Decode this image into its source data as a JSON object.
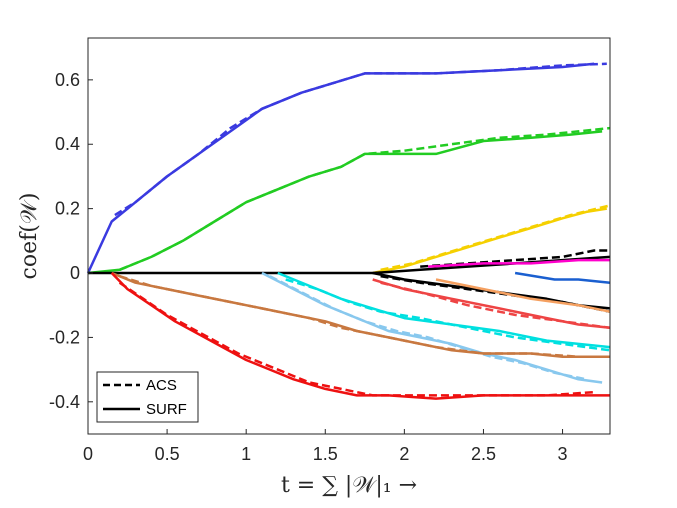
{
  "chart_data": {
    "type": "line",
    "xlabel": "t = ∑ |𝒲|₁ →",
    "ylabel": "coef(𝒲)",
    "xlim": [
      0,
      3.3
    ],
    "ylim": [
      -0.5,
      0.73
    ],
    "xticks": [
      0,
      0.5,
      1,
      1.5,
      2,
      2.5,
      3
    ],
    "xtick_labels": [
      "0",
      "0.5",
      "1",
      "1.5",
      "2",
      "2.5",
      "3"
    ],
    "yticks": [
      -0.4,
      -0.2,
      0,
      0.2,
      0.4,
      0.6
    ],
    "ytick_labels": [
      "-0.4",
      "-0.2",
      "0",
      "0.2",
      "0.4",
      "0.6"
    ],
    "grid": false,
    "legend": {
      "placement": "bottom-left",
      "entries": [
        {
          "label": "ACS",
          "style": "dashed"
        },
        {
          "label": "SURF",
          "style": "solid"
        }
      ]
    },
    "series": [
      {
        "color": "#3a3ae0",
        "style": "solid",
        "x": [
          0,
          0.15,
          0.3,
          0.5,
          0.7,
          0.9,
          1.1,
          1.35,
          1.55,
          1.75,
          1.85,
          2.2,
          2.6,
          3.0,
          3.2
        ],
        "y": [
          0,
          0.16,
          0.22,
          0.3,
          0.37,
          0.44,
          0.51,
          0.56,
          0.59,
          0.62,
          0.62,
          0.62,
          0.63,
          0.64,
          0.65
        ]
      },
      {
        "color": "#3a3ae0",
        "style": "dashed",
        "x": [
          0.17,
          0.3,
          0.5,
          0.7,
          0.9,
          1.1,
          1.35,
          1.55,
          1.75,
          1.85,
          2.2,
          2.6,
          3.0,
          3.28
        ],
        "y": [
          0.18,
          0.22,
          0.3,
          0.37,
          0.45,
          0.51,
          0.56,
          0.59,
          0.62,
          0.62,
          0.62,
          0.63,
          0.645,
          0.65
        ]
      },
      {
        "color": "#22cc22",
        "style": "solid",
        "x": [
          0,
          0.2,
          0.4,
          0.6,
          0.8,
          1.0,
          1.2,
          1.4,
          1.6,
          1.75,
          1.95,
          2.2,
          2.5,
          2.8,
          3.05,
          3.25
        ],
        "y": [
          0,
          0.01,
          0.05,
          0.1,
          0.16,
          0.22,
          0.26,
          0.3,
          0.33,
          0.37,
          0.37,
          0.37,
          0.41,
          0.42,
          0.43,
          0.44
        ]
      },
      {
        "color": "#22cc22",
        "style": "dashed",
        "x": [
          0.2,
          0.4,
          0.6,
          0.8,
          1.0,
          1.2,
          1.4,
          1.6,
          1.75,
          2.0,
          2.3,
          2.6,
          2.9,
          3.3
        ],
        "y": [
          0.01,
          0.05,
          0.1,
          0.16,
          0.22,
          0.26,
          0.3,
          0.33,
          0.37,
          0.38,
          0.4,
          0.42,
          0.43,
          0.45
        ]
      },
      {
        "color": "#f5d000",
        "style": "solid",
        "x": [
          1.8,
          2.0,
          2.2,
          2.4,
          2.6,
          2.8,
          3.0,
          3.15,
          3.28
        ],
        "y": [
          0.0,
          0.02,
          0.05,
          0.08,
          0.11,
          0.14,
          0.17,
          0.19,
          0.2
        ]
      },
      {
        "color": "#f5d000",
        "style": "dashed",
        "x": [
          1.85,
          2.05,
          2.25,
          2.45,
          2.65,
          2.85,
          3.05,
          3.3
        ],
        "y": [
          0.01,
          0.03,
          0.06,
          0.09,
          0.12,
          0.15,
          0.18,
          0.21
        ]
      },
      {
        "color": "#000000",
        "style": "solid",
        "x": [
          0,
          1.8,
          2.1,
          2.4,
          2.7,
          3.0,
          3.3
        ],
        "y": [
          0,
          0,
          0.01,
          0.02,
          0.03,
          0.04,
          0.05
        ]
      },
      {
        "color": "#000000",
        "style": "dashed",
        "x": [
          2.1,
          2.4,
          2.7,
          3.0,
          3.2,
          3.3
        ],
        "y": [
          0.02,
          0.03,
          0.04,
          0.05,
          0.07,
          0.07
        ]
      },
      {
        "color": "#ff00cc",
        "style": "solid",
        "x": [
          2.15,
          2.5,
          2.8,
          3.1,
          3.3
        ],
        "y": [
          0.02,
          0.03,
          0.03,
          0.04,
          0.04
        ]
      },
      {
        "color": "#1a5fd0",
        "style": "solid",
        "x": [
          2.7,
          2.95,
          3.1,
          3.3
        ],
        "y": [
          0,
          -0.02,
          -0.02,
          -0.03
        ]
      },
      {
        "color": "#000000",
        "style": "solid",
        "x": [
          1.8,
          2.0,
          2.3,
          2.6,
          2.9,
          3.1,
          3.3
        ],
        "y": [
          0,
          -0.02,
          -0.04,
          -0.06,
          -0.08,
          -0.1,
          -0.11
        ]
      },
      {
        "color": "#000000",
        "style": "dashed",
        "x": [
          1.85,
          2.1,
          2.4,
          2.7,
          3.0,
          3.3
        ],
        "y": [
          -0.01,
          -0.03,
          -0.05,
          -0.07,
          -0.09,
          -0.12
        ]
      },
      {
        "color": "#f5a060",
        "style": "solid",
        "x": [
          2.2,
          2.5,
          2.8,
          3.1,
          3.3
        ],
        "y": [
          -0.02,
          -0.05,
          -0.08,
          -0.1,
          -0.12
        ]
      },
      {
        "color": "#ee4444",
        "style": "solid",
        "x": [
          1.8,
          2.0,
          2.3,
          2.6,
          2.9,
          3.1,
          3.3
        ],
        "y": [
          -0.02,
          -0.05,
          -0.08,
          -0.11,
          -0.14,
          -0.16,
          -0.17
        ]
      },
      {
        "color": "#ee4444",
        "style": "dashed",
        "x": [
          1.85,
          2.1,
          2.4,
          2.7,
          3.0,
          3.3
        ],
        "y": [
          -0.03,
          -0.06,
          -0.1,
          -0.13,
          -0.15,
          -0.17
        ]
      },
      {
        "color": "#00e0e0",
        "style": "solid",
        "x": [
          1.2,
          1.4,
          1.6,
          1.8,
          2.0,
          2.3,
          2.6,
          2.9,
          3.1,
          3.3
        ],
        "y": [
          0,
          -0.04,
          -0.08,
          -0.11,
          -0.14,
          -0.16,
          -0.18,
          -0.21,
          -0.22,
          -0.23
        ]
      },
      {
        "color": "#00e0e0",
        "style": "dashed",
        "x": [
          1.25,
          1.45,
          1.65,
          1.85,
          2.1,
          2.4,
          2.7,
          3.0,
          3.3
        ],
        "y": [
          -0.02,
          -0.05,
          -0.09,
          -0.12,
          -0.14,
          -0.17,
          -0.2,
          -0.22,
          -0.24
        ]
      },
      {
        "color": "#88c8ee",
        "style": "solid",
        "x": [
          1.1,
          1.3,
          1.5,
          1.7,
          1.9,
          2.1,
          2.3,
          2.5,
          2.7,
          2.9,
          3.1,
          3.25
        ],
        "y": [
          0,
          -0.05,
          -0.1,
          -0.14,
          -0.18,
          -0.2,
          -0.22,
          -0.25,
          -0.27,
          -0.3,
          -0.33,
          -0.34
        ]
      },
      {
        "color": "#88c8ee",
        "style": "dashed",
        "x": [
          1.15,
          1.35,
          1.55,
          1.75,
          1.95,
          2.15,
          2.35,
          2.55,
          2.75,
          2.95,
          3.15
        ],
        "y": [
          -0.01,
          -0.06,
          -0.11,
          -0.15,
          -0.18,
          -0.2,
          -0.23,
          -0.26,
          -0.28,
          -0.31,
          -0.33
        ]
      },
      {
        "color": "#c87840",
        "style": "solid",
        "x": [
          0.15,
          0.3,
          0.5,
          0.7,
          0.9,
          1.1,
          1.3,
          1.5,
          1.7,
          1.9,
          2.1,
          2.3,
          2.5,
          2.8,
          3.0,
          3.3
        ],
        "y": [
          0,
          -0.03,
          -0.05,
          -0.07,
          -0.09,
          -0.11,
          -0.13,
          -0.15,
          -0.18,
          -0.2,
          -0.22,
          -0.24,
          -0.25,
          -0.25,
          -0.26,
          -0.26
        ]
      },
      {
        "color": "#c87840",
        "style": "dashed",
        "x": [
          0.2,
          0.4,
          0.6,
          0.8,
          1.0,
          1.2,
          1.4,
          1.6,
          1.8,
          2.0,
          2.2,
          2.5,
          2.8,
          3.1
        ],
        "y": [
          -0.01,
          -0.04,
          -0.06,
          -0.08,
          -0.1,
          -0.12,
          -0.14,
          -0.17,
          -0.19,
          -0.21,
          -0.23,
          -0.25,
          -0.25,
          -0.26
        ]
      },
      {
        "color": "#ee1111",
        "style": "solid",
        "x": [
          0.15,
          0.25,
          0.4,
          0.55,
          0.7,
          0.85,
          1.0,
          1.15,
          1.3,
          1.5,
          1.7,
          1.75,
          1.9,
          2.2,
          2.5,
          2.8,
          3.1,
          3.3
        ],
        "y": [
          0,
          -0.05,
          -0.1,
          -0.15,
          -0.19,
          -0.23,
          -0.27,
          -0.3,
          -0.33,
          -0.36,
          -0.38,
          -0.38,
          -0.38,
          -0.39,
          -0.38,
          -0.38,
          -0.38,
          -0.38
        ]
      },
      {
        "color": "#ee1111",
        "style": "dashed",
        "x": [
          0.2,
          0.35,
          0.5,
          0.65,
          0.8,
          0.95,
          1.1,
          1.25,
          1.4,
          1.6,
          1.8,
          2.0,
          2.3,
          2.6,
          2.9,
          3.2
        ],
        "y": [
          -0.03,
          -0.08,
          -0.13,
          -0.17,
          -0.21,
          -0.25,
          -0.28,
          -0.31,
          -0.34,
          -0.36,
          -0.38,
          -0.38,
          -0.38,
          -0.38,
          -0.38,
          -0.37
        ]
      }
    ]
  }
}
